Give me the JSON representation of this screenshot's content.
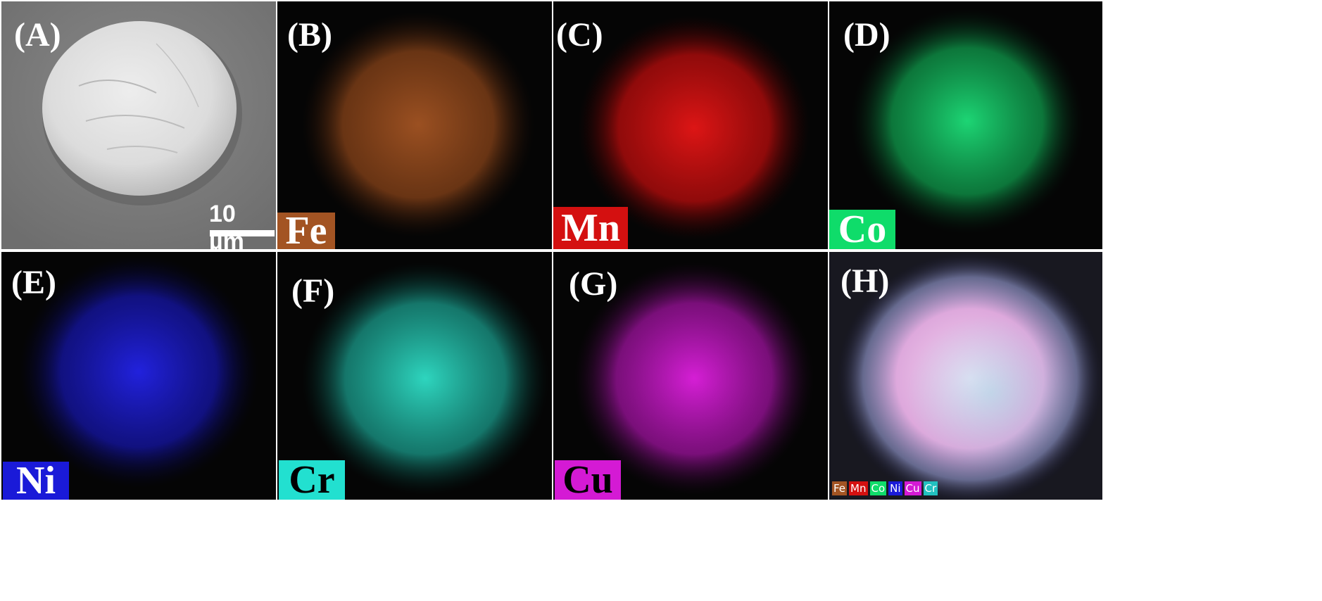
{
  "figure": {
    "colors": {
      "fe": "#a35423",
      "mn": "#d41010",
      "co": "#0fdc6a",
      "ni": "#1a1ad8",
      "cr": "#22e0d0",
      "cu": "#d41ad4",
      "overlay": "#f0c8ee"
    },
    "panels": [
      {
        "label": "(A)",
        "kind": "sem",
        "element": "",
        "scale_bar": "10 µm"
      },
      {
        "label": "(B)",
        "kind": "map",
        "element": "Fe"
      },
      {
        "label": "(C)",
        "kind": "map",
        "element": "Mn"
      },
      {
        "label": "(D)",
        "kind": "map",
        "element": "Co"
      },
      {
        "label": "(E)",
        "kind": "map",
        "element": "Ni"
      },
      {
        "label": "(F)",
        "kind": "map",
        "element": "Cr"
      },
      {
        "label": "(G)",
        "kind": "map",
        "element": "Cu"
      },
      {
        "label": "(H)",
        "kind": "overlay",
        "element": ""
      }
    ],
    "overlay_legend": [
      "Fe",
      "Mn",
      "Co",
      "Ni",
      "Cu",
      "Cr"
    ]
  }
}
